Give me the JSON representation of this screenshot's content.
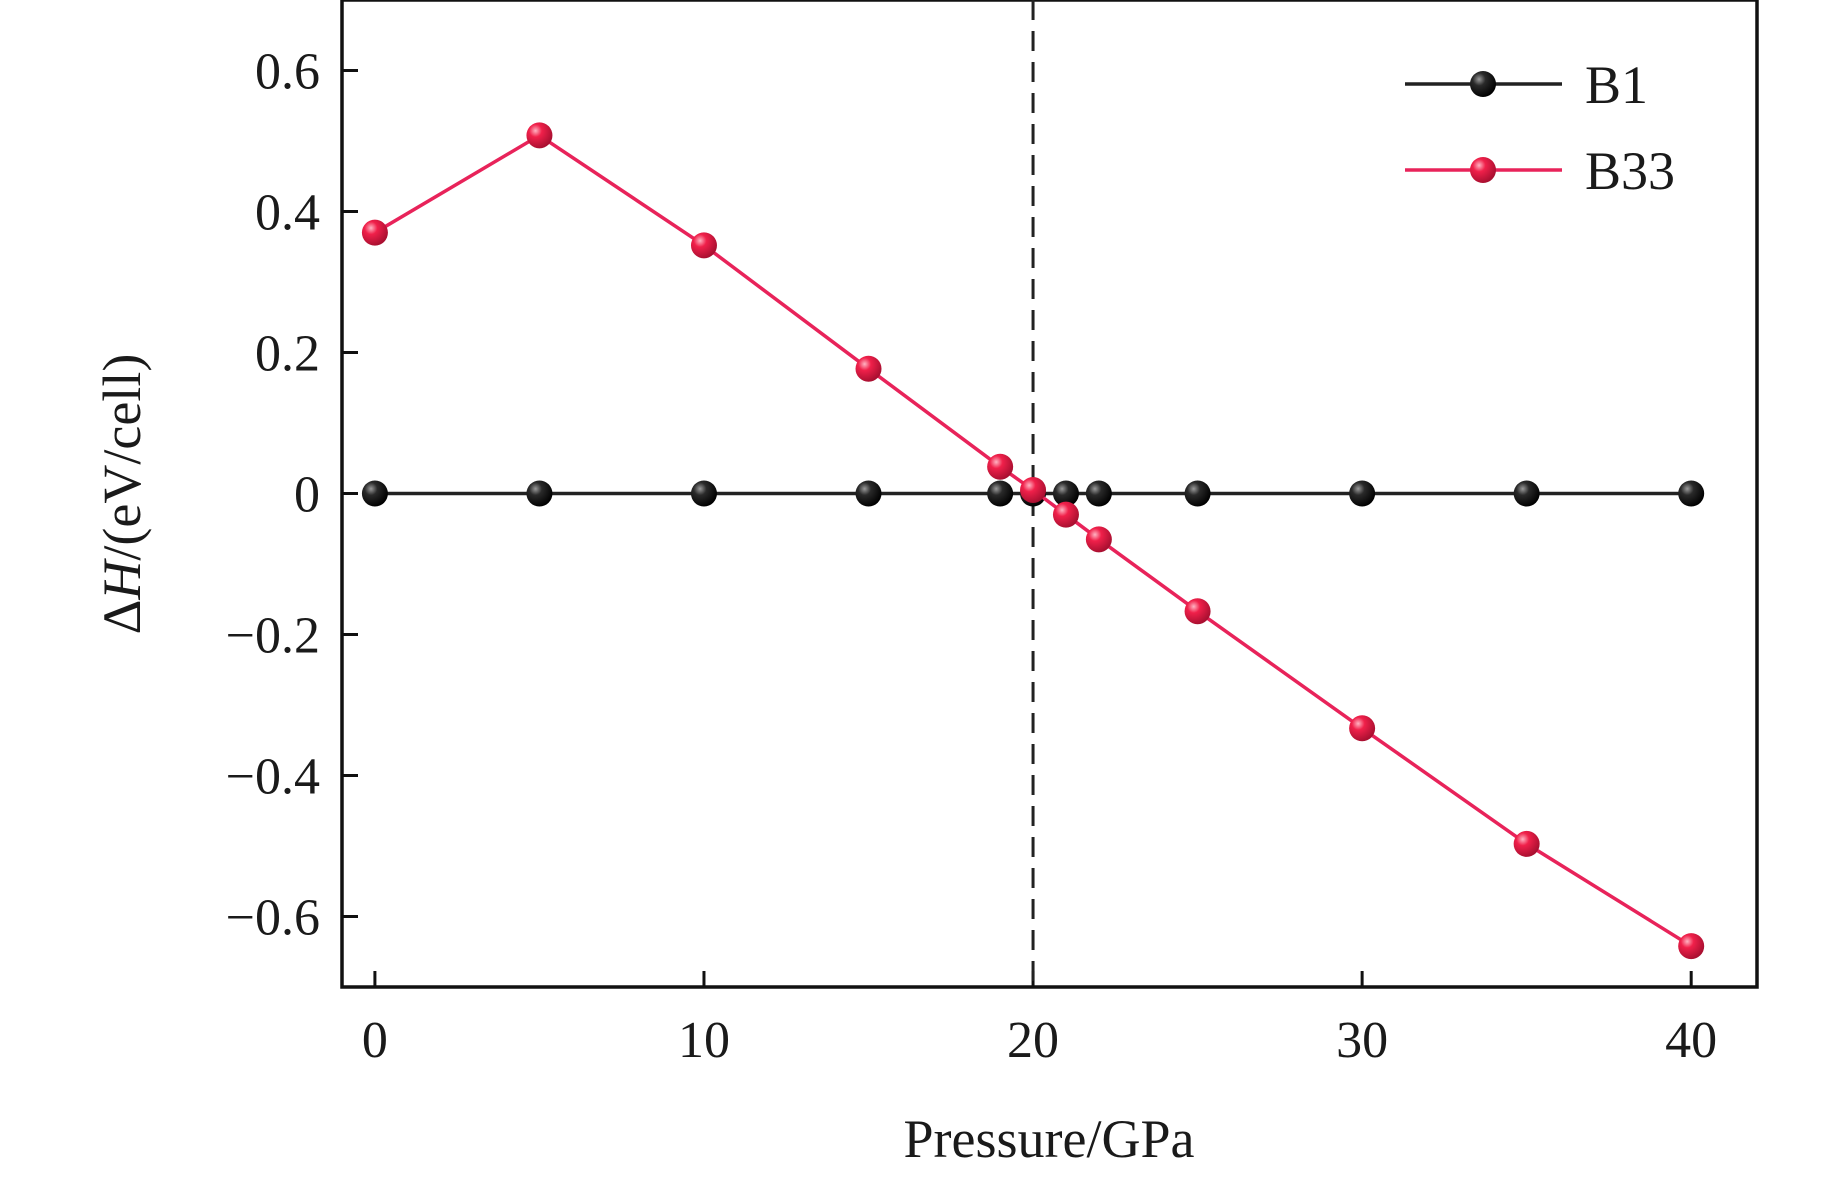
{
  "chart_data": {
    "type": "line",
    "xlabel": "Pressure/GPa",
    "ylabel_delta": "Δ",
    "ylabel_italic": "H",
    "ylabel_rest": "/(eV/cell)",
    "xlim": [
      -1,
      42
    ],
    "ylim": [
      -0.7,
      0.7
    ],
    "xticks": [
      0,
      10,
      20,
      30,
      40
    ],
    "xtick_labels": [
      "0",
      "10",
      "20",
      "30",
      "40"
    ],
    "yticks": [
      0.6,
      0.4,
      0.2,
      0,
      -0.2,
      -0.4,
      -0.6
    ],
    "ytick_labels": [
      "0.6",
      "0.4",
      "0.2",
      "0",
      "−0.2",
      "−0.4",
      "−0.6"
    ],
    "vertical_reference_line": {
      "x": 20,
      "style": "dashed",
      "color": "#222222"
    },
    "legend_position": "top-right",
    "series": [
      {
        "name": "B1",
        "color": "#222222",
        "marker_color": "#111111",
        "x": [
          0,
          5,
          10,
          15,
          19,
          20,
          21,
          22,
          25,
          30,
          35,
          40
        ],
        "y": [
          0,
          0,
          0,
          0,
          0,
          0,
          0,
          0,
          0,
          0,
          0,
          0
        ]
      },
      {
        "name": "B33",
        "color": "#e8235a",
        "marker_color": "#f0204a",
        "x": [
          0,
          5,
          10,
          15,
          19,
          20,
          21,
          22,
          25,
          30,
          35,
          40
        ],
        "y": [
          0.37,
          0.508,
          0.352,
          0.177,
          0.038,
          0.005,
          -0.03,
          -0.065,
          -0.167,
          -0.333,
          -0.497,
          -0.642
        ]
      }
    ]
  }
}
